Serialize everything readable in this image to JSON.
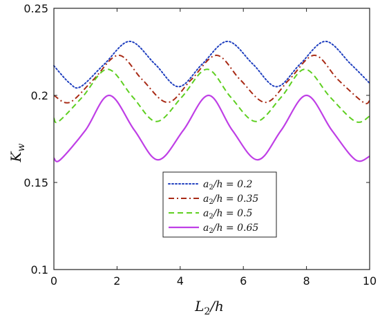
{
  "chart_data": {
    "type": "line",
    "xlabel": "L_2/h",
    "ylabel": "K_w",
    "xlim": [
      0,
      10
    ],
    "ylim": [
      0.1,
      0.25
    ],
    "xticks": [
      "0",
      "2",
      "4",
      "6",
      "8",
      "10"
    ],
    "yticks": [
      "0.1",
      "0.15",
      "0.2",
      "0.25"
    ],
    "grid": false,
    "legend_position": "center",
    "series": [
      {
        "name": "a_2/h = 0.2",
        "color": "#1f3fbf",
        "style": "dotted",
        "x": [
          0,
          0.5,
          0.85,
          1.6,
          2.4,
          3.2,
          3.95,
          4.7,
          5.5,
          6.3,
          7.05,
          7.8,
          8.6,
          9.4,
          10
        ],
        "y": [
          0.217,
          0.207,
          0.205,
          0.218,
          0.231,
          0.218,
          0.205,
          0.218,
          0.231,
          0.218,
          0.205,
          0.218,
          0.231,
          0.218,
          0.207
        ]
      },
      {
        "name": "a_2/h = 0.35",
        "color": "#a82a15",
        "style": "dashdot",
        "x": [
          0,
          0.5,
          1.25,
          2.05,
          2.8,
          3.6,
          4.35,
          5.15,
          5.9,
          6.7,
          7.45,
          8.25,
          9.0,
          9.8,
          10
        ],
        "y": [
          0.2,
          0.196,
          0.209,
          0.223,
          0.209,
          0.196,
          0.209,
          0.223,
          0.209,
          0.196,
          0.209,
          0.223,
          0.209,
          0.196,
          0.197
        ]
      },
      {
        "name": "a_2/h = 0.5",
        "color": "#5ecf20",
        "style": "dashed",
        "x": [
          0,
          0.15,
          0.9,
          1.7,
          2.5,
          3.25,
          4.05,
          4.85,
          5.6,
          6.4,
          7.2,
          7.95,
          8.75,
          9.55,
          10
        ],
        "y": [
          0.187,
          0.185,
          0.199,
          0.215,
          0.199,
          0.185,
          0.199,
          0.215,
          0.199,
          0.185,
          0.199,
          0.215,
          0.199,
          0.185,
          0.188
        ]
      },
      {
        "name": "a_2/h = 0.65",
        "color": "#bf3fe6",
        "style": "solid",
        "x": [
          0,
          0.2,
          1.0,
          1.75,
          2.55,
          3.3,
          4.1,
          4.9,
          5.65,
          6.45,
          7.2,
          8.0,
          8.8,
          9.55,
          10
        ],
        "y": [
          0.164,
          0.163,
          0.18,
          0.2,
          0.18,
          0.163,
          0.18,
          0.2,
          0.18,
          0.163,
          0.18,
          0.2,
          0.18,
          0.163,
          0.165
        ]
      }
    ]
  },
  "legend": {
    "entries": [
      {
        "var": "a",
        "sub": "2",
        "rest": "/h = 0.2"
      },
      {
        "var": "a",
        "sub": "2",
        "rest": "/h = 0.35"
      },
      {
        "var": "a",
        "sub": "2",
        "rest": "/h = 0.5"
      },
      {
        "var": "a",
        "sub": "2",
        "rest": "/h = 0.65"
      }
    ]
  },
  "axes": {
    "x_label_main": "L",
    "x_label_sub": "2",
    "x_label_rest": "/h",
    "y_label_main": "K",
    "y_label_sub": "w"
  }
}
